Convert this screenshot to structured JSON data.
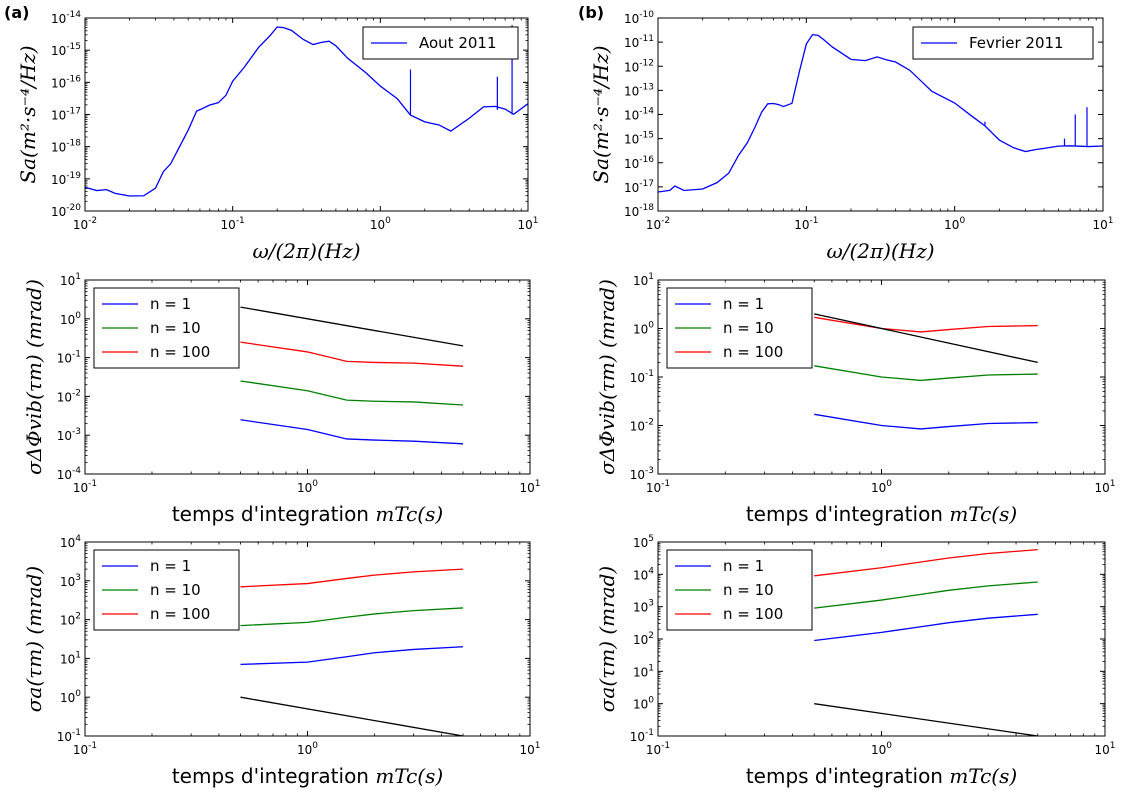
{
  "colors": {
    "blue": "#0000ff",
    "green": "#008000",
    "red": "#ff0000",
    "black": "#000000"
  },
  "chart_data": [
    {
      "id": "spectrum-aout",
      "type": "line",
      "panel_label": "(a)",
      "xscale": "log",
      "yscale": "log",
      "xlim": [
        0.01,
        10
      ],
      "ylim": [
        1e-20,
        1e-14
      ],
      "xlabel": "ω/(2π)(Hz)",
      "ylabel": "Sa(m²·s⁻⁴/Hz)",
      "x_ticks": [
        0.01,
        0.1,
        1,
        10
      ],
      "x_tick_labels": [
        [
          "10",
          "-2"
        ],
        [
          "10",
          "-1"
        ],
        [
          "10",
          "0"
        ],
        [
          "10",
          "1"
        ]
      ],
      "y_ticks": [
        1e-20,
        1e-19,
        1e-18,
        1e-17,
        1e-16,
        1e-15,
        1e-14
      ],
      "y_tick_labels": [
        [
          "10",
          "-20"
        ],
        [
          "10",
          "-19"
        ],
        [
          "10",
          "-18"
        ],
        [
          "10",
          "-17"
        ],
        [
          "10",
          "-16"
        ],
        [
          "10",
          "-15"
        ],
        [
          "10",
          "-14"
        ]
      ],
      "legend_position": "top-right",
      "legend": [
        "Aout 2011"
      ],
      "series": [
        {
          "name": "Aout 2011",
          "color": "blue",
          "x": [
            0.01,
            0.012,
            0.014,
            0.016,
            0.02,
            0.025,
            0.03,
            0.034,
            0.038,
            0.042,
            0.05,
            0.057,
            0.062,
            0.07,
            0.08,
            0.09,
            0.1,
            0.12,
            0.15,
            0.18,
            0.2,
            0.22,
            0.25,
            0.3,
            0.35,
            0.4,
            0.45,
            0.5,
            0.6,
            0.8,
            1.0,
            1.3,
            1.6,
            2.0,
            2.5,
            3.0,
            4.0,
            5.0,
            6.0,
            7.0,
            8.0,
            10
          ],
          "y": [
            6e-20,
            4e-20,
            5e-20,
            3.5e-20,
            3e-20,
            3e-20,
            5e-20,
            1.8e-19,
            3e-19,
            7e-19,
            3e-18,
            1.2e-17,
            1.6e-17,
            1.8e-17,
            2.2e-17,
            4e-17,
            1e-16,
            3e-16,
            1.2e-15,
            3e-15,
            5e-15,
            5e-15,
            4e-15,
            2.2e-15,
            1.6e-15,
            1.8e-15,
            1.9e-15,
            1.5e-15,
            6e-16,
            2e-16,
            7e-17,
            3e-17,
            1e-17,
            6e-18,
            5e-18,
            3e-18,
            7e-18,
            1.6e-17,
            1.8e-17,
            1.4e-17,
            1e-17,
            2e-17
          ]
        }
      ],
      "spikes": [
        [
          1.6,
          2.5e-16
        ],
        [
          6.2,
          1.5e-16
        ],
        [
          7.8,
          6e-15
        ]
      ]
    },
    {
      "id": "spectrum-fevrier",
      "type": "line",
      "panel_label": "(b)",
      "xscale": "log",
      "yscale": "log",
      "xlim": [
        0.01,
        10
      ],
      "ylim": [
        1e-18,
        1e-10
      ],
      "xlabel": "ω/(2π)(Hz)",
      "ylabel": "Sa(m²·s⁻⁴/Hz)",
      "x_ticks": [
        0.01,
        0.1,
        1,
        10
      ],
      "x_tick_labels": [
        [
          "10",
          "-2"
        ],
        [
          "10",
          "-1"
        ],
        [
          "10",
          "0"
        ],
        [
          "10",
          "1"
        ]
      ],
      "y_ticks": [
        1e-18,
        1e-17,
        1e-16,
        1e-15,
        1e-14,
        1e-13,
        1e-12,
        1e-11,
        1e-10
      ],
      "y_tick_labels": [
        [
          "10",
          "-18"
        ],
        [
          "10",
          "-17"
        ],
        [
          "10",
          "-16"
        ],
        [
          "10",
          "-15"
        ],
        [
          "10",
          "-14"
        ],
        [
          "10",
          "-13"
        ],
        [
          "10",
          "-12"
        ],
        [
          "10",
          "-11"
        ],
        [
          "10",
          "-10"
        ]
      ],
      "legend_position": "top-right",
      "legend": [
        "Fevrier 2011"
      ],
      "series": [
        {
          "name": "Fevrier 2011",
          "color": "blue",
          "x": [
            0.01,
            0.012,
            0.013,
            0.015,
            0.02,
            0.025,
            0.03,
            0.035,
            0.04,
            0.045,
            0.05,
            0.055,
            0.06,
            0.065,
            0.07,
            0.08,
            0.09,
            0.1,
            0.11,
            0.12,
            0.13,
            0.15,
            0.2,
            0.25,
            0.3,
            0.35,
            0.4,
            0.5,
            0.7,
            1.0,
            1.3,
            1.6,
            2.0,
            2.5,
            3.0,
            3.5,
            4.0,
            5.0,
            6.0,
            8.0,
            10
          ],
          "y": [
            6e-18,
            7e-18,
            1e-17,
            7e-18,
            8e-18,
            1.5e-17,
            4e-17,
            2e-16,
            7e-16,
            3e-15,
            1.2e-14,
            3e-14,
            3e-14,
            2.5e-14,
            2e-14,
            3e-14,
            6e-13,
            8e-12,
            2e-11,
            1.8e-11,
            1.4e-11,
            6e-12,
            2e-12,
            1.8e-12,
            2.5e-12,
            1.8e-12,
            1.5e-12,
            7e-13,
            1e-13,
            3e-14,
            9e-15,
            3.5e-15,
            9e-16,
            4e-16,
            3e-16,
            3.5e-16,
            4e-16,
            5e-16,
            5e-16,
            5e-16,
            5e-16
          ]
        }
      ],
      "spikes": [
        [
          1.6,
          5e-15
        ],
        [
          5.5,
          1e-15
        ],
        [
          6.5,
          1e-14
        ],
        [
          7.8,
          2e-14
        ]
      ]
    },
    {
      "id": "phase-aout",
      "type": "line",
      "xscale": "log",
      "yscale": "log",
      "xlim": [
        0.1,
        10
      ],
      "ylim": [
        0.0001,
        10
      ],
      "xlabel_prefix": "temps d'integration ",
      "xlabel_math": "mTc(s)",
      "ylabel": "σΔΦvib(τm) (mrad)",
      "x_ticks": [
        0.1,
        1,
        10
      ],
      "x_tick_labels": [
        [
          "10",
          "-1"
        ],
        [
          "10",
          "0"
        ],
        [
          "10",
          "1"
        ]
      ],
      "y_ticks": [
        0.0001,
        0.001,
        0.01,
        0.1,
        1,
        10
      ],
      "y_tick_labels": [
        [
          "10",
          "-4"
        ],
        [
          "10",
          "-3"
        ],
        [
          "10",
          "-2"
        ],
        [
          "10",
          "-1"
        ],
        [
          "10",
          "0"
        ],
        [
          "10",
          "1"
        ]
      ],
      "legend_position": "top-left",
      "legend": [
        "n = 1",
        "n = 10",
        "n = 100"
      ],
      "series": [
        {
          "name": "n = 1",
          "color": "blue",
          "x": [
            0.5,
            1,
            1.5,
            2,
            3,
            5
          ],
          "y": [
            0.0025,
            0.0014,
            0.0008,
            0.00075,
            0.0007,
            0.0006
          ]
        },
        {
          "name": "n = 10",
          "color": "green",
          "x": [
            0.5,
            1,
            1.5,
            2,
            3,
            5
          ],
          "y": [
            0.025,
            0.014,
            0.008,
            0.0075,
            0.0072,
            0.006
          ]
        },
        {
          "name": "n = 100",
          "color": "red",
          "x": [
            0.5,
            1,
            1.5,
            2,
            3,
            5
          ],
          "y": [
            0.25,
            0.14,
            0.08,
            0.075,
            0.072,
            0.06
          ]
        },
        {
          "color": "black",
          "x": [
            0.5,
            5
          ],
          "y": [
            2,
            0.2
          ]
        }
      ]
    },
    {
      "id": "phase-fevrier",
      "type": "line",
      "xscale": "log",
      "yscale": "log",
      "xlim": [
        0.1,
        10
      ],
      "ylim": [
        0.001,
        10
      ],
      "xlabel_prefix": "temps d'integration ",
      "xlabel_math": "mTc(s)",
      "ylabel": "σΔΦvib(τm) (mrad)",
      "x_ticks": [
        0.1,
        1,
        10
      ],
      "x_tick_labels": [
        [
          "10",
          "-1"
        ],
        [
          "10",
          "0"
        ],
        [
          "10",
          "1"
        ]
      ],
      "y_ticks": [
        0.001,
        0.01,
        0.1,
        1,
        10
      ],
      "y_tick_labels": [
        [
          "10",
          "-3"
        ],
        [
          "10",
          "-2"
        ],
        [
          "10",
          "-1"
        ],
        [
          "10",
          "0"
        ],
        [
          "10",
          "1"
        ]
      ],
      "legend_position": "top-left",
      "legend": [
        "n = 1",
        "n = 10",
        "n = 100"
      ],
      "series": [
        {
          "name": "n = 1",
          "color": "blue",
          "x": [
            0.5,
            1,
            1.5,
            2,
            3,
            5
          ],
          "y": [
            0.017,
            0.01,
            0.0085,
            0.0095,
            0.011,
            0.0115
          ]
        },
        {
          "name": "n = 10",
          "color": "green",
          "x": [
            0.5,
            1,
            1.5,
            2,
            3,
            5
          ],
          "y": [
            0.17,
            0.1,
            0.085,
            0.095,
            0.11,
            0.115
          ]
        },
        {
          "name": "n = 100",
          "color": "red",
          "x": [
            0.5,
            1,
            1.5,
            2,
            3,
            5
          ],
          "y": [
            1.7,
            1.0,
            0.85,
            0.95,
            1.1,
            1.15
          ]
        },
        {
          "color": "black",
          "x": [
            0.5,
            5
          ],
          "y": [
            2,
            0.2
          ]
        }
      ]
    },
    {
      "id": "accel-aout",
      "type": "line",
      "xscale": "log",
      "yscale": "log",
      "xlim": [
        0.1,
        10
      ],
      "ylim": [
        0.1,
        10000.0
      ],
      "xlabel_prefix": "temps d'integration ",
      "xlabel_math": "mTc(s)",
      "ylabel": "σa(τm) (mrad)",
      "x_ticks": [
        0.1,
        1,
        10
      ],
      "x_tick_labels": [
        [
          "10",
          "-1"
        ],
        [
          "10",
          "0"
        ],
        [
          "10",
          "1"
        ]
      ],
      "y_ticks": [
        0.1,
        1,
        10,
        100,
        1000,
        10000
      ],
      "y_tick_labels": [
        [
          "10",
          "-1"
        ],
        [
          "10",
          "0"
        ],
        [
          "10",
          "1"
        ],
        [
          "10",
          "2"
        ],
        [
          "10",
          "3"
        ],
        [
          "10",
          "4"
        ]
      ],
      "legend_position": "top-left",
      "legend": [
        "n = 1",
        "n = 10",
        "n = 100"
      ],
      "series": [
        {
          "name": "n = 1",
          "color": "blue",
          "x": [
            0.5,
            1,
            1.5,
            2,
            3,
            5
          ],
          "y": [
            7,
            8,
            11,
            14,
            17,
            20
          ]
        },
        {
          "name": "n = 10",
          "color": "green",
          "x": [
            0.5,
            1,
            1.5,
            2,
            3,
            5
          ],
          "y": [
            70,
            85,
            115,
            140,
            170,
            200
          ]
        },
        {
          "name": "n = 100",
          "color": "red",
          "x": [
            0.5,
            1,
            1.5,
            2,
            3,
            5
          ],
          "y": [
            700,
            850,
            1150,
            1400,
            1700,
            2000
          ]
        },
        {
          "color": "black",
          "x": [
            0.5,
            5
          ],
          "y": [
            1,
            0.1
          ]
        }
      ]
    },
    {
      "id": "accel-fevrier",
      "type": "line",
      "xscale": "log",
      "yscale": "log",
      "xlim": [
        0.1,
        10
      ],
      "ylim": [
        0.1,
        100000.0
      ],
      "xlabel_prefix": "temps d'integration ",
      "xlabel_math": "mTc(s)",
      "ylabel": "σa(τm) (mrad)",
      "x_ticks": [
        0.1,
        1,
        10
      ],
      "x_tick_labels": [
        [
          "10",
          "-1"
        ],
        [
          "10",
          "0"
        ],
        [
          "10",
          "1"
        ]
      ],
      "y_ticks": [
        0.1,
        1,
        10,
        100,
        1000,
        10000,
        100000
      ],
      "y_tick_labels": [
        [
          "10",
          "-1"
        ],
        [
          "10",
          "0"
        ],
        [
          "10",
          "1"
        ],
        [
          "10",
          "2"
        ],
        [
          "10",
          "3"
        ],
        [
          "10",
          "4"
        ],
        [
          "10",
          "5"
        ]
      ],
      "legend_position": "top-left",
      "legend": [
        "n = 1",
        "n = 10",
        "n = 100"
      ],
      "series": [
        {
          "name": "n = 1",
          "color": "blue",
          "x": [
            0.5,
            1,
            1.5,
            2,
            3,
            5
          ],
          "y": [
            90,
            160,
            240,
            320,
            440,
            580
          ]
        },
        {
          "name": "n = 10",
          "color": "green",
          "x": [
            0.5,
            1,
            1.5,
            2,
            3,
            5
          ],
          "y": [
            900,
            1600,
            2400,
            3200,
            4400,
            5800
          ]
        },
        {
          "name": "n = 100",
          "color": "red",
          "x": [
            0.5,
            1,
            1.5,
            2,
            3,
            5
          ],
          "y": [
            9000,
            16000,
            24000,
            32000,
            44000,
            58000
          ]
        },
        {
          "color": "black",
          "x": [
            0.5,
            5
          ],
          "y": [
            1,
            0.1
          ]
        }
      ]
    }
  ]
}
